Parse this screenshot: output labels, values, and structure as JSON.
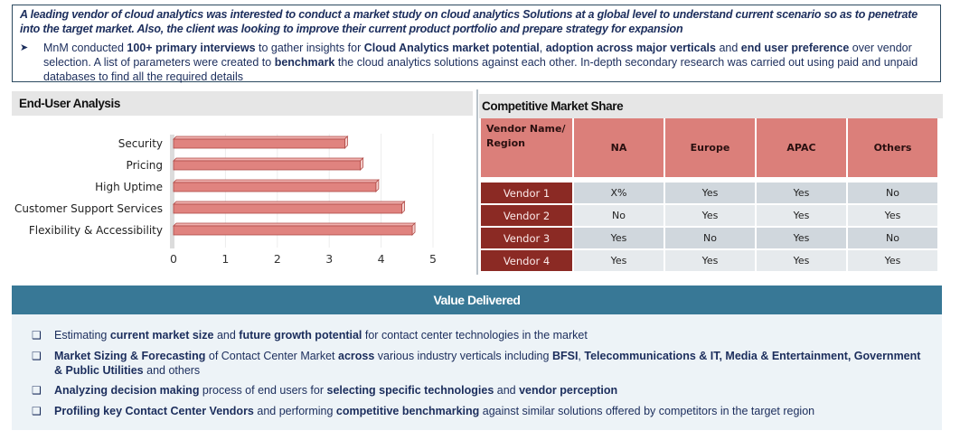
{
  "intro": {
    "lead": "A leading vendor of cloud analytics was interested to conduct a market study on cloud analytics Solutions at a global level to understand current scenario so as to penetrate into the target market. Also, the client was looking to improve their current product portfolio and prepare strategy for expansion",
    "bullet_icon": "arrow-bullet-icon",
    "bullet_parts": [
      {
        "t": "MnM conducted ",
        "b": false
      },
      {
        "t": "100+ primary interviews",
        "b": true
      },
      {
        "t": " to gather insights for ",
        "b": false
      },
      {
        "t": "Cloud Analytics market potential",
        "b": true
      },
      {
        "t": ", ",
        "b": false
      },
      {
        "t": "adoption across major verticals",
        "b": true
      },
      {
        "t": " and ",
        "b": false
      },
      {
        "t": "end user preference",
        "b": true
      },
      {
        "t": " over vendor selection. A list of parameters were created to ",
        "b": false
      },
      {
        "t": "benchmark",
        "b": true
      },
      {
        "t": " the cloud analytics solutions against each other. In-depth secondary research was carried out using paid and unpaid databases to find all the required details",
        "b": false
      }
    ]
  },
  "end_user": {
    "title": "End-User Analysis"
  },
  "chart_data": {
    "type": "bar",
    "orientation": "horizontal",
    "title": "End-User Analysis",
    "categories": [
      "Security",
      "Pricing",
      "High Uptime",
      "Customer Support Services",
      "Flexibility & Accessibility"
    ],
    "values": [
      3.3,
      3.6,
      3.9,
      4.4,
      4.6
    ],
    "xlim": [
      0,
      5
    ],
    "xticks": [
      "0",
      "1",
      "2",
      "3",
      "4",
      "5"
    ],
    "xlabel": "",
    "ylabel": "",
    "grid": true,
    "bar_color": "#e0837f"
  },
  "market_share": {
    "title": "Competitive Market Share",
    "header_first": "Vendor Name/ Region",
    "columns": [
      "NA",
      "Europe",
      "APAC",
      "Others"
    ],
    "rows": [
      {
        "vendor": "Vendor 1",
        "cells": [
          "X%",
          "Yes",
          "Yes",
          "No"
        ]
      },
      {
        "vendor": "Vendor 2",
        "cells": [
          "No",
          "Yes",
          "Yes",
          "Yes"
        ]
      },
      {
        "vendor": "Vendor 3",
        "cells": [
          "Yes",
          "No",
          "Yes",
          "No"
        ]
      },
      {
        "vendor": "Vendor 4",
        "cells": [
          "Yes",
          "Yes",
          "Yes",
          "Yes"
        ]
      }
    ]
  },
  "value_delivered": {
    "title": "Value Delivered",
    "bullet_icon": "checkbox-bullet-icon",
    "items": [
      [
        {
          "t": "Estimating ",
          "b": false
        },
        {
          "t": "current market size",
          "b": true
        },
        {
          "t": " and ",
          "b": false
        },
        {
          "t": "future growth potential",
          "b": true
        },
        {
          "t": " for contact center technologies in the market",
          "b": false
        }
      ],
      [
        {
          "t": "Market Sizing & Forecasting",
          "b": true
        },
        {
          "t": " of Contact Center Market ",
          "b": false
        },
        {
          "t": "across",
          "b": true
        },
        {
          "t": " various industry verticals including ",
          "b": false
        },
        {
          "t": "BFSI",
          "b": true
        },
        {
          "t": ", ",
          "b": false
        },
        {
          "t": "Telecommunications & IT, Media & Entertainment, Government & Public Utilities",
          "b": true
        },
        {
          "t": " and others",
          "b": false
        }
      ],
      [
        {
          "t": "Analyzing decision making",
          "b": true
        },
        {
          "t": " process of end users for ",
          "b": false
        },
        {
          "t": "selecting specific technologies",
          "b": true
        },
        {
          "t": " and ",
          "b": false
        },
        {
          "t": "vendor perception",
          "b": true
        }
      ],
      [
        {
          "t": "Profiling key Contact Center Vendors",
          "b": true
        },
        {
          "t": " and performing ",
          "b": false
        },
        {
          "t": "competitive benchmarking",
          "b": true
        },
        {
          "t": " against similar solutions offered by competitors in the target region",
          "b": false
        }
      ]
    ]
  }
}
